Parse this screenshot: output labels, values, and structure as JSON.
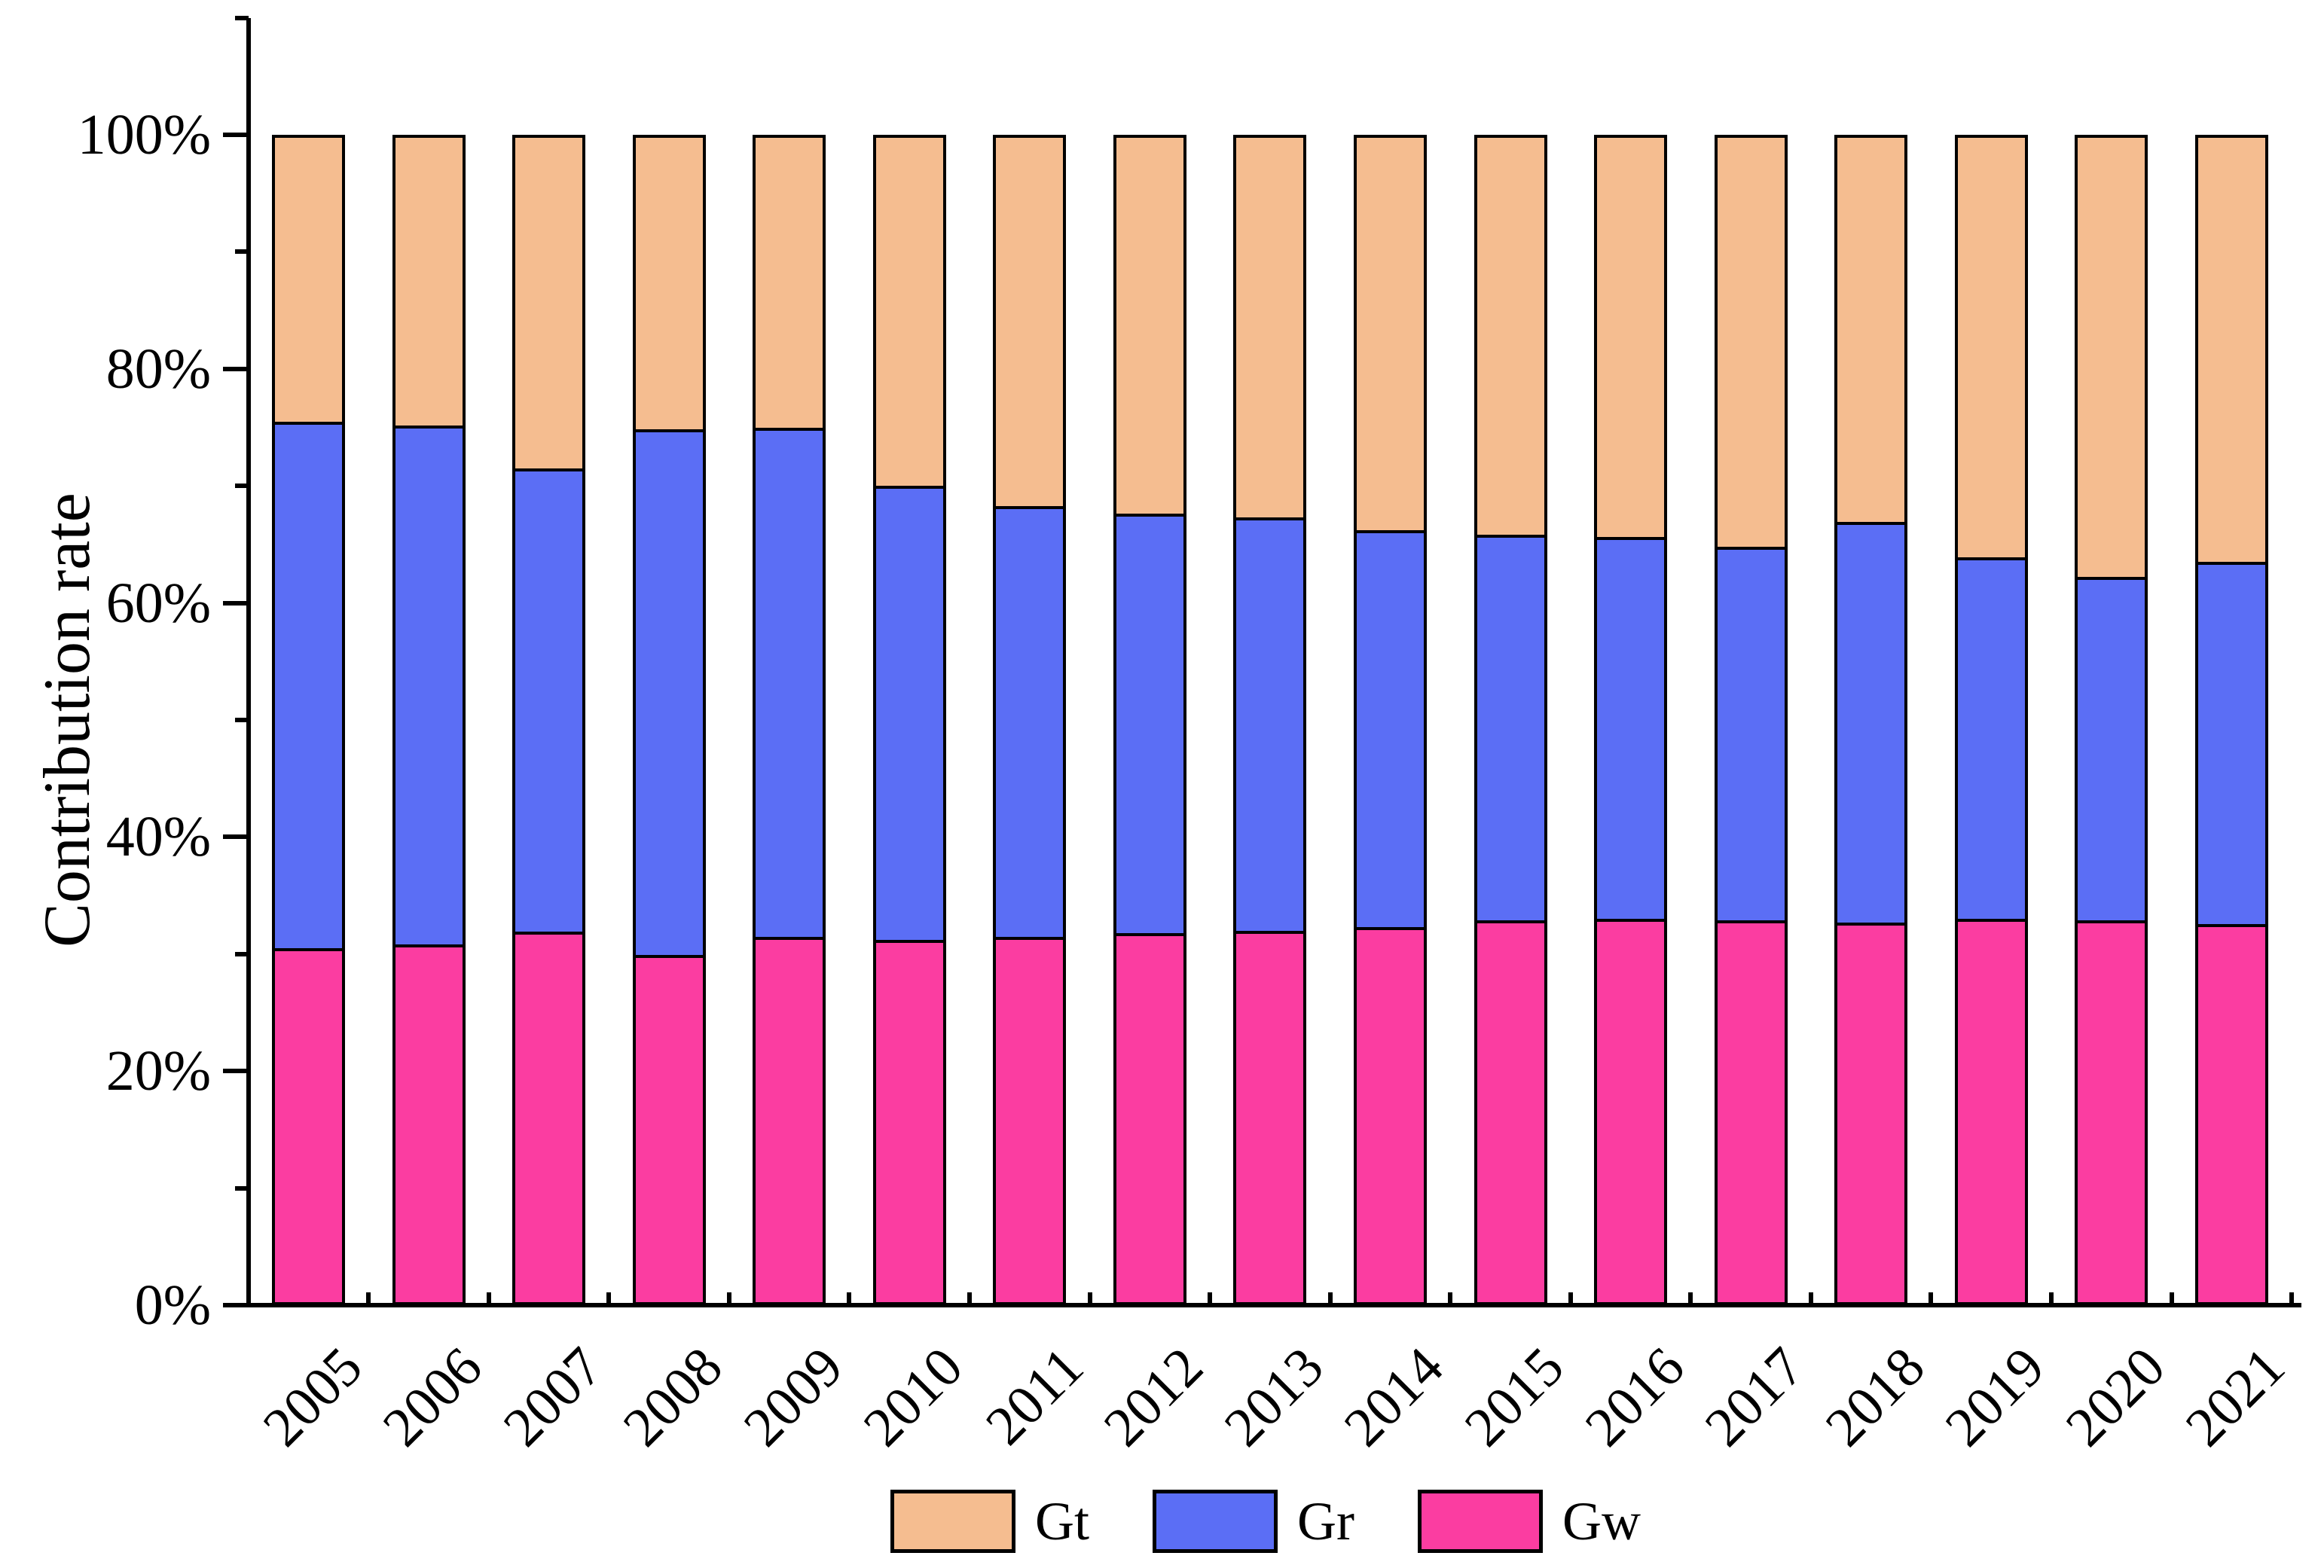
{
  "y_axis": {
    "label": "Contribution rate",
    "tick_labels": [
      "0%",
      "20%",
      "40%",
      "60%",
      "80%",
      "100%"
    ]
  },
  "legend": [
    {
      "label": "Gt",
      "color": "#F5BD90"
    },
    {
      "label": "Gr",
      "color": "#5B6EF5"
    },
    {
      "label": "Gw",
      "color": "#FB3DA1"
    }
  ],
  "chart_data": {
    "type": "bar",
    "stacked": true,
    "title": "",
    "xlabel": "",
    "ylabel": "Contribution rate",
    "ylim": [
      0,
      100
    ],
    "y_major_step": 20,
    "y_minor_step": 10,
    "grid": false,
    "legend_position": "bottom",
    "categories": [
      "2005",
      "2006",
      "2007",
      "2008",
      "2009",
      "2010",
      "2011",
      "2012",
      "2013",
      "2014",
      "2015",
      "2016",
      "2017",
      "2018",
      "2019",
      "2020",
      "2021"
    ],
    "series": [
      {
        "name": "Gw",
        "color": "#FB3DA1",
        "values": [
          30.4,
          30.7,
          31.8,
          29.8,
          31.4,
          31.1,
          31.4,
          31.7,
          31.9,
          32.2,
          32.8,
          32.9,
          32.8,
          32.6,
          32.9,
          32.8,
          32.5
        ]
      },
      {
        "name": "Gr",
        "color": "#5B6EF5",
        "values": [
          45.2,
          44.6,
          39.8,
          45.2,
          43.7,
          39.0,
          37.0,
          36.0,
          35.5,
          34.1,
          33.1,
          32.8,
          32.1,
          34.4,
          31.1,
          29.5,
          31.1
        ]
      },
      {
        "name": "Gt",
        "color": "#F5BD90",
        "values": [
          24.4,
          24.7,
          28.4,
          25.0,
          24.9,
          29.9,
          31.6,
          32.3,
          32.6,
          33.7,
          34.1,
          34.3,
          35.1,
          33.0,
          36.0,
          37.7,
          36.4
        ]
      }
    ]
  }
}
